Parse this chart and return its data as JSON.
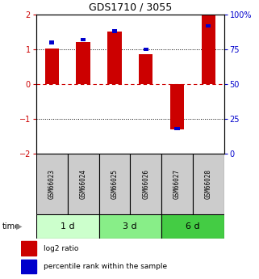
{
  "title": "GDS1710 / 3055",
  "samples": [
    "GSM66023",
    "GSM66024",
    "GSM66025",
    "GSM66026",
    "GSM66027",
    "GSM66028"
  ],
  "log2_ratio": [
    1.02,
    1.22,
    1.5,
    0.85,
    -1.3,
    2.0
  ],
  "percentile": [
    80,
    82,
    88,
    75,
    18,
    92
  ],
  "groups": [
    {
      "label": "1 d",
      "samples": [
        0,
        1
      ],
      "color": "#ccffcc"
    },
    {
      "label": "3 d",
      "samples": [
        2,
        3
      ],
      "color": "#88ee88"
    },
    {
      "label": "6 d",
      "samples": [
        4,
        5
      ],
      "color": "#44cc44"
    }
  ],
  "ylim": [
    -2,
    2
  ],
  "yticks_left": [
    -2,
    -1,
    0,
    1,
    2
  ],
  "yticks_right": [
    0,
    25,
    50,
    75,
    100
  ],
  "bar_color_red": "#cc0000",
  "bar_color_blue": "#0000cc",
  "bar_width": 0.45,
  "percentile_marker_size": 0.1,
  "zero_line_color": "#cc0000",
  "background_color": "#ffffff",
  "label_color_left": "#cc0000",
  "label_color_right": "#0000cc",
  "legend_red": "log2 ratio",
  "legend_blue": "percentile rank within the sample",
  "sample_box_color": "#cccccc",
  "time_label": "time"
}
